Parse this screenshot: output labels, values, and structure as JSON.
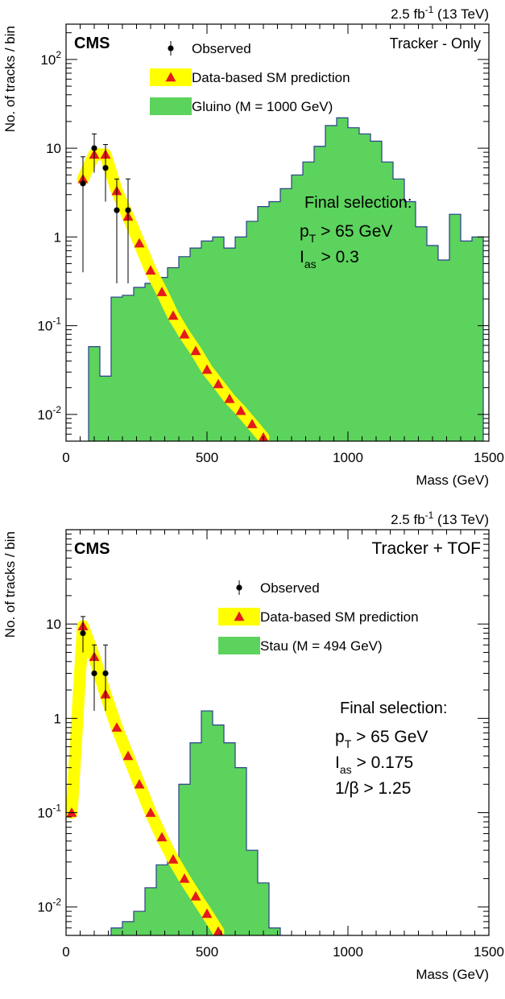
{
  "colors": {
    "gluino_fill": "#5cd35c",
    "stau_fill": "#5cd35c",
    "hist_line": "#2a3f8c",
    "band": "#ffff00",
    "prediction_marker": "#e41a1c",
    "observed_marker": "#000000"
  },
  "chart_data": [
    {
      "type": "histogram",
      "scale_y": "log",
      "title_right": "Tracker - Only",
      "experiment": "CMS",
      "lumi_prefix": "2.5 fb",
      "lumi_exp": "-1",
      "lumi_suffix": " (13 TeV)",
      "xlabel": "Mass (GeV)",
      "ylabel": "No. of tracks / bin",
      "xlim": [
        0,
        1500
      ],
      "ylim": [
        0.005,
        250
      ],
      "x_ticks": [
        0,
        500,
        1000,
        1500
      ],
      "y_ticks": [
        {
          "value": 0.01,
          "base": "10",
          "exp": "-2"
        },
        {
          "value": 0.1,
          "base": "10",
          "exp": "-1"
        },
        {
          "value": 1,
          "base": "1",
          "exp": ""
        },
        {
          "value": 10,
          "base": "10",
          "exp": ""
        },
        {
          "value": 100,
          "base": "10",
          "exp": "2"
        }
      ],
      "legend": [
        {
          "kind": "observed",
          "label": "Observed"
        },
        {
          "kind": "prediction",
          "label": "Data-based SM prediction"
        },
        {
          "kind": "signal",
          "label": "Gluino (M = 1000 GeV)"
        }
      ],
      "annotation": {
        "heading": "Final selection:",
        "lines": [
          {
            "main": "p",
            "sub": "T",
            "rest": " > 65 GeV"
          },
          {
            "main": "I",
            "sub": "as",
            "rest": " > 0.3"
          }
        ]
      },
      "signal": {
        "name": "Gluino (M = 1000 GeV)",
        "bin_width": 40,
        "bins": [
          [
            80,
            0.058
          ],
          [
            120,
            0.027
          ],
          [
            160,
            0.21
          ],
          [
            200,
            0.22
          ],
          [
            240,
            0.27
          ],
          [
            280,
            0.3
          ],
          [
            320,
            0.35
          ],
          [
            360,
            0.45
          ],
          [
            400,
            0.6
          ],
          [
            440,
            0.75
          ],
          [
            480,
            0.9
          ],
          [
            520,
            1.0
          ],
          [
            560,
            0.75
          ],
          [
            600,
            1.0
          ],
          [
            640,
            1.5
          ],
          [
            680,
            2.2
          ],
          [
            720,
            2.5
          ],
          [
            760,
            3.5
          ],
          [
            800,
            5.0
          ],
          [
            840,
            7.0
          ],
          [
            880,
            10.5
          ],
          [
            920,
            18.0
          ],
          [
            960,
            22.0
          ],
          [
            1000,
            17.0
          ],
          [
            1040,
            14.5
          ],
          [
            1080,
            12.0
          ],
          [
            1120,
            7.0
          ],
          [
            1160,
            4.5
          ],
          [
            1200,
            2.5
          ],
          [
            1240,
            1.3
          ],
          [
            1280,
            0.8
          ],
          [
            1320,
            0.55
          ],
          [
            1360,
            1.8
          ],
          [
            1400,
            0.9
          ],
          [
            1440,
            1.0
          ]
        ]
      },
      "prediction": {
        "x": [
          60,
          100,
          140,
          180,
          220,
          260,
          300,
          340,
          380,
          420,
          460,
          500,
          540,
          580,
          620,
          660,
          700
        ],
        "y": [
          4.5,
          8.5,
          8.5,
          3.3,
          1.7,
          0.85,
          0.42,
          0.24,
          0.13,
          0.08,
          0.052,
          0.032,
          0.022,
          0.015,
          0.011,
          0.0078,
          0.0055
        ]
      },
      "observed": [
        {
          "x": 60,
          "y": 4.0,
          "lo": 0.4,
          "hi": 8.0
        },
        {
          "x": 100,
          "y": 10.0,
          "lo": 5.3,
          "hi": 14.5
        },
        {
          "x": 140,
          "y": 6.0,
          "lo": 2.5,
          "hi": 11.0
        },
        {
          "x": 180,
          "y": 2.0,
          "lo": 0.3,
          "hi": 4.5
        },
        {
          "x": 220,
          "y": 2.0,
          "lo": 0.3,
          "hi": 4.5
        }
      ]
    },
    {
      "type": "histogram",
      "scale_y": "log",
      "title_right": "Tracker + TOF",
      "experiment": "CMS",
      "lumi_prefix": "2.5 fb",
      "lumi_exp": "-1",
      "lumi_suffix": " (13 TeV)",
      "xlabel": "Mass (GeV)",
      "ylabel": "No. of tracks / bin",
      "xlim": [
        0,
        1500
      ],
      "ylim": [
        0.005,
        100
      ],
      "x_ticks": [
        0,
        500,
        1000,
        1500
      ],
      "y_ticks": [
        {
          "value": 0.01,
          "base": "10",
          "exp": "-2"
        },
        {
          "value": 0.1,
          "base": "10",
          "exp": "-1"
        },
        {
          "value": 1,
          "base": "1",
          "exp": ""
        },
        {
          "value": 10,
          "base": "10",
          "exp": ""
        }
      ],
      "legend": [
        {
          "kind": "observed",
          "label": "Observed"
        },
        {
          "kind": "prediction",
          "label": "Data-based SM prediction"
        },
        {
          "kind": "signal",
          "label": "Stau (M = 494 GeV)"
        }
      ],
      "annotation": {
        "heading": "Final selection:",
        "lines": [
          {
            "main": "p",
            "sub": "T",
            "rest": " > 65 GeV"
          },
          {
            "main": "I",
            "sub": "as",
            "rest": " > 0.175"
          },
          {
            "main": "1/β",
            "sub": "",
            "rest": " > 1.25"
          }
        ]
      },
      "signal": {
        "name": "Stau (M = 494 GeV)",
        "bin_width": 40,
        "bins": [
          [
            160,
            0.006
          ],
          [
            200,
            0.007
          ],
          [
            240,
            0.009
          ],
          [
            280,
            0.016
          ],
          [
            320,
            0.028
          ],
          [
            360,
            0.032
          ],
          [
            400,
            0.2
          ],
          [
            440,
            0.55
          ],
          [
            480,
            1.2
          ],
          [
            520,
            0.85
          ],
          [
            560,
            0.55
          ],
          [
            600,
            0.3
          ],
          [
            640,
            0.04
          ],
          [
            680,
            0.018
          ],
          [
            720,
            0.006
          ]
        ]
      },
      "prediction": {
        "x": [
          20,
          60,
          100,
          140,
          180,
          220,
          260,
          300,
          340,
          380,
          420,
          460,
          500,
          540
        ],
        "y": [
          0.1,
          9.5,
          4.5,
          1.8,
          0.8,
          0.4,
          0.2,
          0.1,
          0.055,
          0.032,
          0.02,
          0.013,
          0.0085,
          0.0055
        ]
      },
      "observed": [
        {
          "x": 60,
          "y": 8.0,
          "lo": 5.0,
          "hi": 12.0
        },
        {
          "x": 100,
          "y": 3.0,
          "lo": 1.2,
          "hi": 6.0
        },
        {
          "x": 140,
          "y": 3.0,
          "lo": 1.2,
          "hi": 6.0
        }
      ]
    }
  ]
}
